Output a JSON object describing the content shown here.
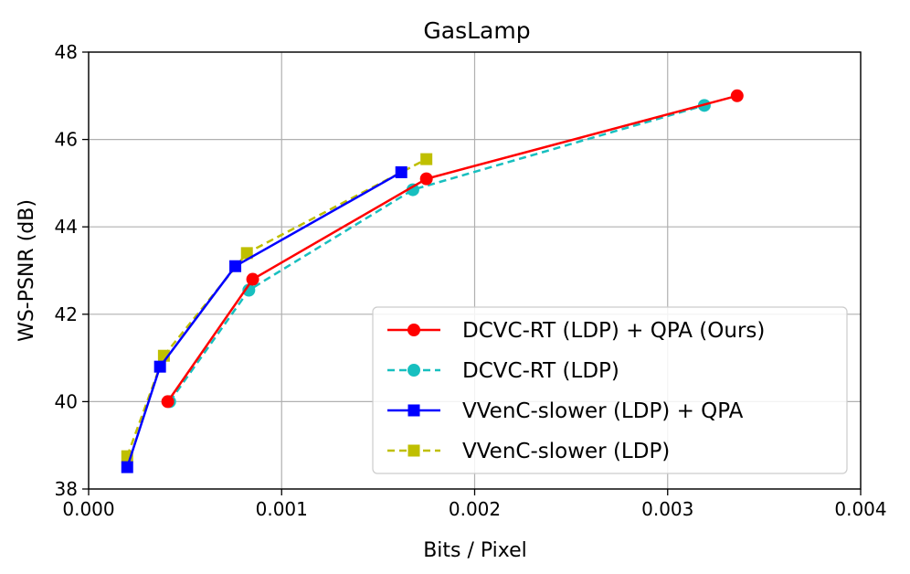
{
  "chart_data": {
    "type": "line",
    "title": "GasLamp",
    "xlabel": "Bits / Pixel",
    "ylabel": "WS-PSNR (dB)",
    "xlim": [
      0.0,
      0.004
    ],
    "ylim": [
      38,
      48
    ],
    "xticks": [
      0.0,
      0.001,
      0.002,
      0.003,
      0.004
    ],
    "xtick_labels": [
      "0.000",
      "0.001",
      "0.002",
      "0.003",
      "0.004"
    ],
    "yticks": [
      38,
      40,
      42,
      44,
      46,
      48
    ],
    "ytick_labels": [
      "38",
      "40",
      "42",
      "44",
      "46",
      "48"
    ],
    "grid": true,
    "legend_position": "lower-right",
    "series": [
      {
        "name": "DCVC-RT (LDP) + QPA (Ours)",
        "color": "#ff0000",
        "linestyle": "solid",
        "marker": "circle",
        "x": [
          0.00041,
          0.00085,
          0.00175,
          0.00336
        ],
        "y": [
          40.0,
          42.8,
          45.1,
          47.0
        ]
      },
      {
        "name": "DCVC-RT (LDP)",
        "color": "#17bfbf",
        "linestyle": "dashed",
        "marker": "circle",
        "x": [
          0.00042,
          0.00083,
          0.00168,
          0.00319
        ],
        "y": [
          40.0,
          42.55,
          44.85,
          46.78
        ]
      },
      {
        "name": "VVenC-slower (LDP) + QPA",
        "color": "#0000ff",
        "linestyle": "solid",
        "marker": "square",
        "x": [
          0.0002,
          0.00037,
          0.00076,
          0.00162
        ],
        "y": [
          38.5,
          40.8,
          43.1,
          45.25
        ]
      },
      {
        "name": "VVenC-slower (LDP)",
        "color": "#bfbf00",
        "linestyle": "dashed",
        "marker": "square",
        "x": [
          0.0002,
          0.00039,
          0.00082,
          0.00175
        ],
        "y": [
          38.75,
          41.05,
          43.4,
          45.55
        ]
      }
    ]
  }
}
